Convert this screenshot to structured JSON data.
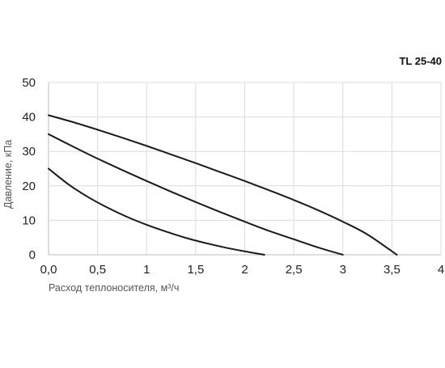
{
  "chart_data": {
    "type": "line",
    "title": "TL 25-40",
    "xlabel": "Расход теплоносителя, м³/ч",
    "ylabel": "Давление, кПа",
    "xlim": [
      0,
      4
    ],
    "ylim": [
      0,
      50
    ],
    "x_ticks": [
      "0,0",
      "0,5",
      "1",
      "1,5",
      "2",
      "2,5",
      "3",
      "3,5",
      "4"
    ],
    "y_ticks": [
      "0",
      "10",
      "20",
      "30",
      "40",
      "50"
    ],
    "grid": true,
    "colors": {
      "line": "#1a1a1a",
      "grid": "#dcdcdc",
      "axis": "#bdbdbd"
    },
    "series": [
      {
        "values": [
          [
            0,
            25
          ],
          [
            0.2,
            20.5
          ],
          [
            0.4,
            16.8
          ],
          [
            0.6,
            13.7
          ],
          [
            0.8,
            11.0
          ],
          [
            1.0,
            8.7
          ],
          [
            1.2,
            6.7
          ],
          [
            1.4,
            4.9
          ],
          [
            1.6,
            3.4
          ],
          [
            1.8,
            2.1
          ],
          [
            2.0,
            1.0
          ],
          [
            2.2,
            0
          ]
        ]
      },
      {
        "values": [
          [
            0,
            35
          ],
          [
            0.25,
            31.4
          ],
          [
            0.5,
            27.9
          ],
          [
            0.75,
            24.6
          ],
          [
            1.0,
            21.4
          ],
          [
            1.25,
            18.3
          ],
          [
            1.5,
            15.3
          ],
          [
            1.75,
            12.4
          ],
          [
            2.0,
            9.6
          ],
          [
            2.25,
            6.9
          ],
          [
            2.5,
            4.5
          ],
          [
            2.75,
            2.1
          ],
          [
            3.0,
            0
          ]
        ]
      },
      {
        "values": [
          [
            0,
            40.5
          ],
          [
            0.25,
            38.5
          ],
          [
            0.5,
            36.3
          ],
          [
            0.75,
            34.0
          ],
          [
            1.0,
            31.6
          ],
          [
            1.25,
            29.1
          ],
          [
            1.5,
            26.6
          ],
          [
            1.75,
            24.0
          ],
          [
            2.0,
            21.4
          ],
          [
            2.25,
            18.7
          ],
          [
            2.5,
            15.9
          ],
          [
            2.75,
            12.9
          ],
          [
            3.0,
            9.6
          ],
          [
            3.25,
            5.9
          ],
          [
            3.55,
            0
          ]
        ]
      }
    ]
  }
}
